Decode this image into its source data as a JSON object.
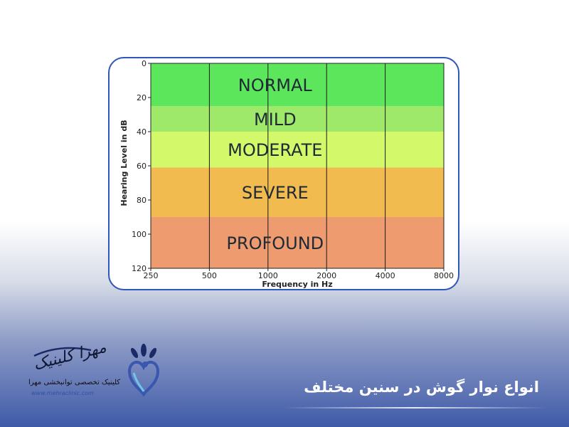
{
  "chart_data": {
    "type": "area",
    "xlabel": "Frequency in Hz",
    "ylabel": "Hearing Level in dB",
    "x_ticks": [
      250,
      500,
      1000,
      2000,
      4000,
      8000
    ],
    "y_ticks": [
      0,
      20,
      40,
      60,
      80,
      100,
      120
    ],
    "xlim": [
      250,
      8000
    ],
    "ylim": [
      0,
      120
    ],
    "x_scale": "log2",
    "y_inverted": true,
    "grid": "vertical lines at x ticks",
    "bands": [
      {
        "label": "NORMAL",
        "from": 0,
        "to": 25,
        "color": "#5ce65c"
      },
      {
        "label": "MILD",
        "from": 25,
        "to": 40,
        "color": "#9ee86a"
      },
      {
        "label": "MODERATE",
        "from": 40,
        "to": 61,
        "color": "#d3f86a"
      },
      {
        "label": "SEVERE",
        "from": 61,
        "to": 90,
        "color": "#f2bb50"
      },
      {
        "label": "PROFOUND",
        "from": 90,
        "to": 120,
        "color": "#ee9b6f"
      }
    ]
  },
  "branding": {
    "name": "مهرا کلینیک",
    "subtitle": "کلینیک تخصصی توانبخشی مهرا",
    "url": "www.mehraclinic.com"
  },
  "caption": "انواع نوار گوش در سنین مختلف",
  "colors": {
    "accent": "#2f56b8",
    "logo_blue": "#3a57b0"
  }
}
